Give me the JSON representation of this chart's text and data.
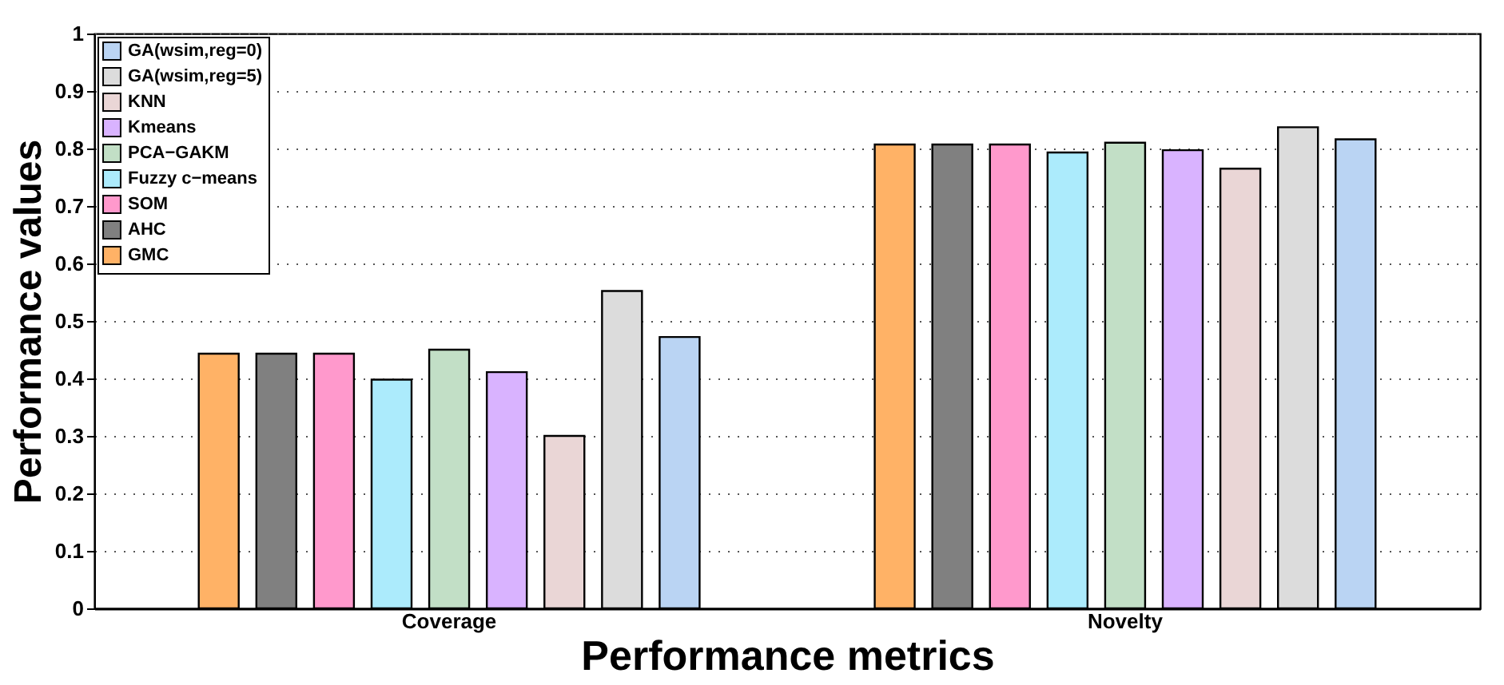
{
  "chart_data": {
    "type": "bar",
    "xlabel": "Performance metrics",
    "ylabel": "Performance values",
    "categories": [
      "Coverage",
      "Novelty"
    ],
    "series": [
      {
        "name": "GMC",
        "color": "#ffb266",
        "values": [
          0.443,
          0.807
        ]
      },
      {
        "name": "AHC",
        "color": "#808080",
        "values": [
          0.443,
          0.807
        ]
      },
      {
        "name": "SOM",
        "color": "#ff99cc",
        "values": [
          0.443,
          0.807
        ]
      },
      {
        "name": "Fuzzy c−means",
        "color": "#acebfc",
        "values": [
          0.398,
          0.793
        ]
      },
      {
        "name": "PCA−GAKM",
        "color": "#c2dfc6",
        "values": [
          0.45,
          0.81
        ]
      },
      {
        "name": "Kmeans",
        "color": "#d9b3ff",
        "values": [
          0.411,
          0.797
        ]
      },
      {
        "name": "KNN",
        "color": "#ead6d6",
        "values": [
          0.3,
          0.765
        ]
      },
      {
        "name": "GA(wsim,reg=5)",
        "color": "#dcdcdc",
        "values": [
          0.552,
          0.837
        ]
      },
      {
        "name": "GA(wsim,reg=0)",
        "color": "#bad4f3",
        "values": [
          0.472,
          0.816
        ]
      }
    ],
    "ylim": [
      0,
      1
    ],
    "yticks": [
      0,
      0.1,
      0.2,
      0.3,
      0.4,
      0.5,
      0.6,
      0.7,
      0.8,
      0.9,
      1
    ],
    "grid": "y",
    "legend": "top left"
  }
}
